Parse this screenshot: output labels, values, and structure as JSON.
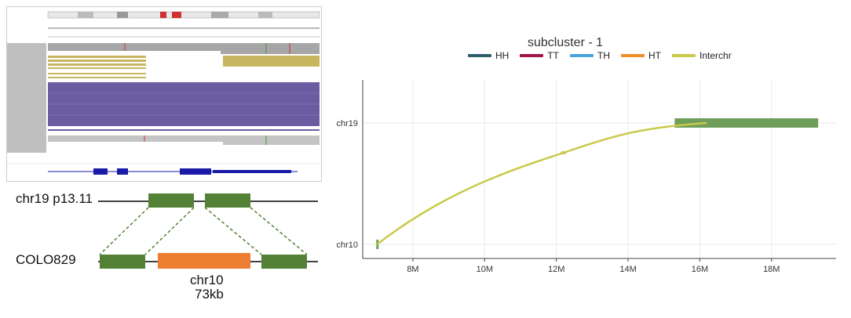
{
  "diagram": {
    "ref_label": "chr19 p13.11",
    "sample_label": "COLO829",
    "insert_label": "chr10",
    "insert_size": "73kb",
    "colors": {
      "segment": "#538135",
      "insert": "#ED7D31",
      "line": "#000000",
      "dash": "#538135"
    }
  },
  "igv": {
    "colors": {
      "coverage": "#a0a0a0",
      "reads_purple": "#6b5ba1",
      "reads_gold": "#c8b560",
      "gene": "#1a1aa8",
      "sidebar": "#bfbfbf"
    }
  },
  "chart_data": {
    "type": "line",
    "title": "subcluster - 1",
    "legend": [
      {
        "name": "HH",
        "color": "#2F5F6B"
      },
      {
        "name": "TT",
        "color": "#A0154A"
      },
      {
        "name": "TH",
        "color": "#4AA3DF"
      },
      {
        "name": "HT",
        "color": "#F28C28"
      },
      {
        "name": "Interchr",
        "color": "#C9C94A"
      }
    ],
    "x_ticks": [
      "8M",
      "10M",
      "12M",
      "14M",
      "16M",
      "18M"
    ],
    "x_tick_values": [
      8,
      10,
      12,
      14,
      16,
      18
    ],
    "xlim": [
      6.6,
      19.8
    ],
    "y_categories": [
      "chr10",
      "chr19"
    ],
    "interchr_curve": {
      "start": [
        7.0,
        "chr10"
      ],
      "mid": [
        12.2,
        "chr19"
      ],
      "end": [
        16.2,
        "chr19"
      ]
    },
    "chr19_segment": {
      "start": 15.3,
      "end": 19.3,
      "color": "#6E9E5A"
    },
    "chr10_segment": {
      "start": 7.0,
      "end": 7.05,
      "color": "#6E9E5A"
    },
    "grid": true
  }
}
